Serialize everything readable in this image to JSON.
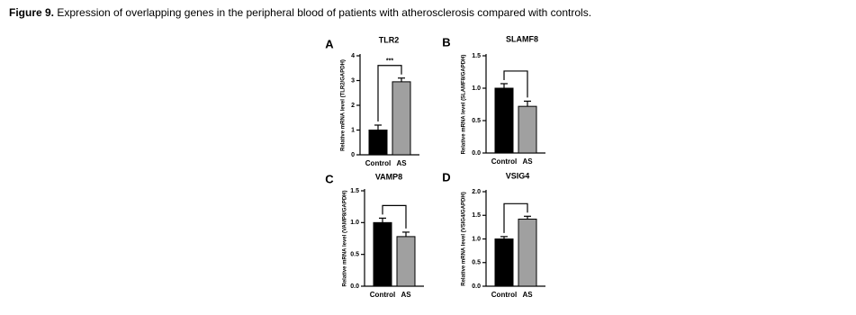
{
  "caption": {
    "label": "Figure 9.",
    "text": "Expression of overlapping genes in the peripheral blood of patients with atherosclerosis compared with controls."
  },
  "chart_data": [
    {
      "type": "bar",
      "panel": "A",
      "title": "TLR2",
      "ylabel": "Relative mRNA level (TLR2/GAPDH)",
      "categories": [
        "Control",
        "AS"
      ],
      "values": [
        1.0,
        2.95
      ],
      "errors": [
        0.2,
        0.15
      ],
      "colors": [
        "#000000",
        "#a0a0a0"
      ],
      "ylim": [
        0,
        4
      ],
      "yticks": [
        0,
        1,
        2,
        3,
        4
      ],
      "annotation": "***"
    },
    {
      "type": "bar",
      "panel": "B",
      "title": "SLAMF8",
      "ylabel": "Relative mRNA level (SLAMF8/GAPDH)",
      "categories": [
        "Control",
        "AS"
      ],
      "values": [
        1.0,
        0.72
      ],
      "errors": [
        0.07,
        0.08
      ],
      "colors": [
        "#000000",
        "#a0a0a0"
      ],
      "ylim": [
        0,
        1.5
      ],
      "yticks": [
        {
          "value": 0,
          "label": "0.0"
        },
        0.5,
        {
          "value": 1,
          "label": "1.0"
        },
        1.5
      ]
    },
    {
      "type": "bar",
      "panel": "C",
      "title": "VAMP8",
      "ylabel": "Relative mRNA level (VAMP8/GAPDH)",
      "categories": [
        "Control",
        "AS"
      ],
      "values": [
        1.0,
        0.78
      ],
      "errors": [
        0.07,
        0.07
      ],
      "colors": [
        "#000000",
        "#a0a0a0"
      ],
      "ylim": [
        0,
        1.5
      ],
      "yticks": [
        {
          "value": 0,
          "label": "0.0"
        },
        0.5,
        {
          "value": 1,
          "label": "1.0"
        },
        1.5
      ]
    },
    {
      "type": "bar",
      "panel": "D",
      "title": "VSIG4",
      "ylabel": "Relative mRNA level (VSIG4/GAPDH)",
      "categories": [
        "Control",
        "AS"
      ],
      "values": [
        1.0,
        1.42
      ],
      "errors": [
        0.05,
        0.06
      ],
      "colors": [
        "#000000",
        "#a0a0a0"
      ],
      "ylim": [
        0,
        2
      ],
      "yticks": [
        {
          "value": 0,
          "label": "0.0"
        },
        0.5,
        {
          "value": 1,
          "label": "1.0"
        },
        1.5,
        {
          "value": 2,
          "label": "2.0"
        }
      ]
    }
  ]
}
